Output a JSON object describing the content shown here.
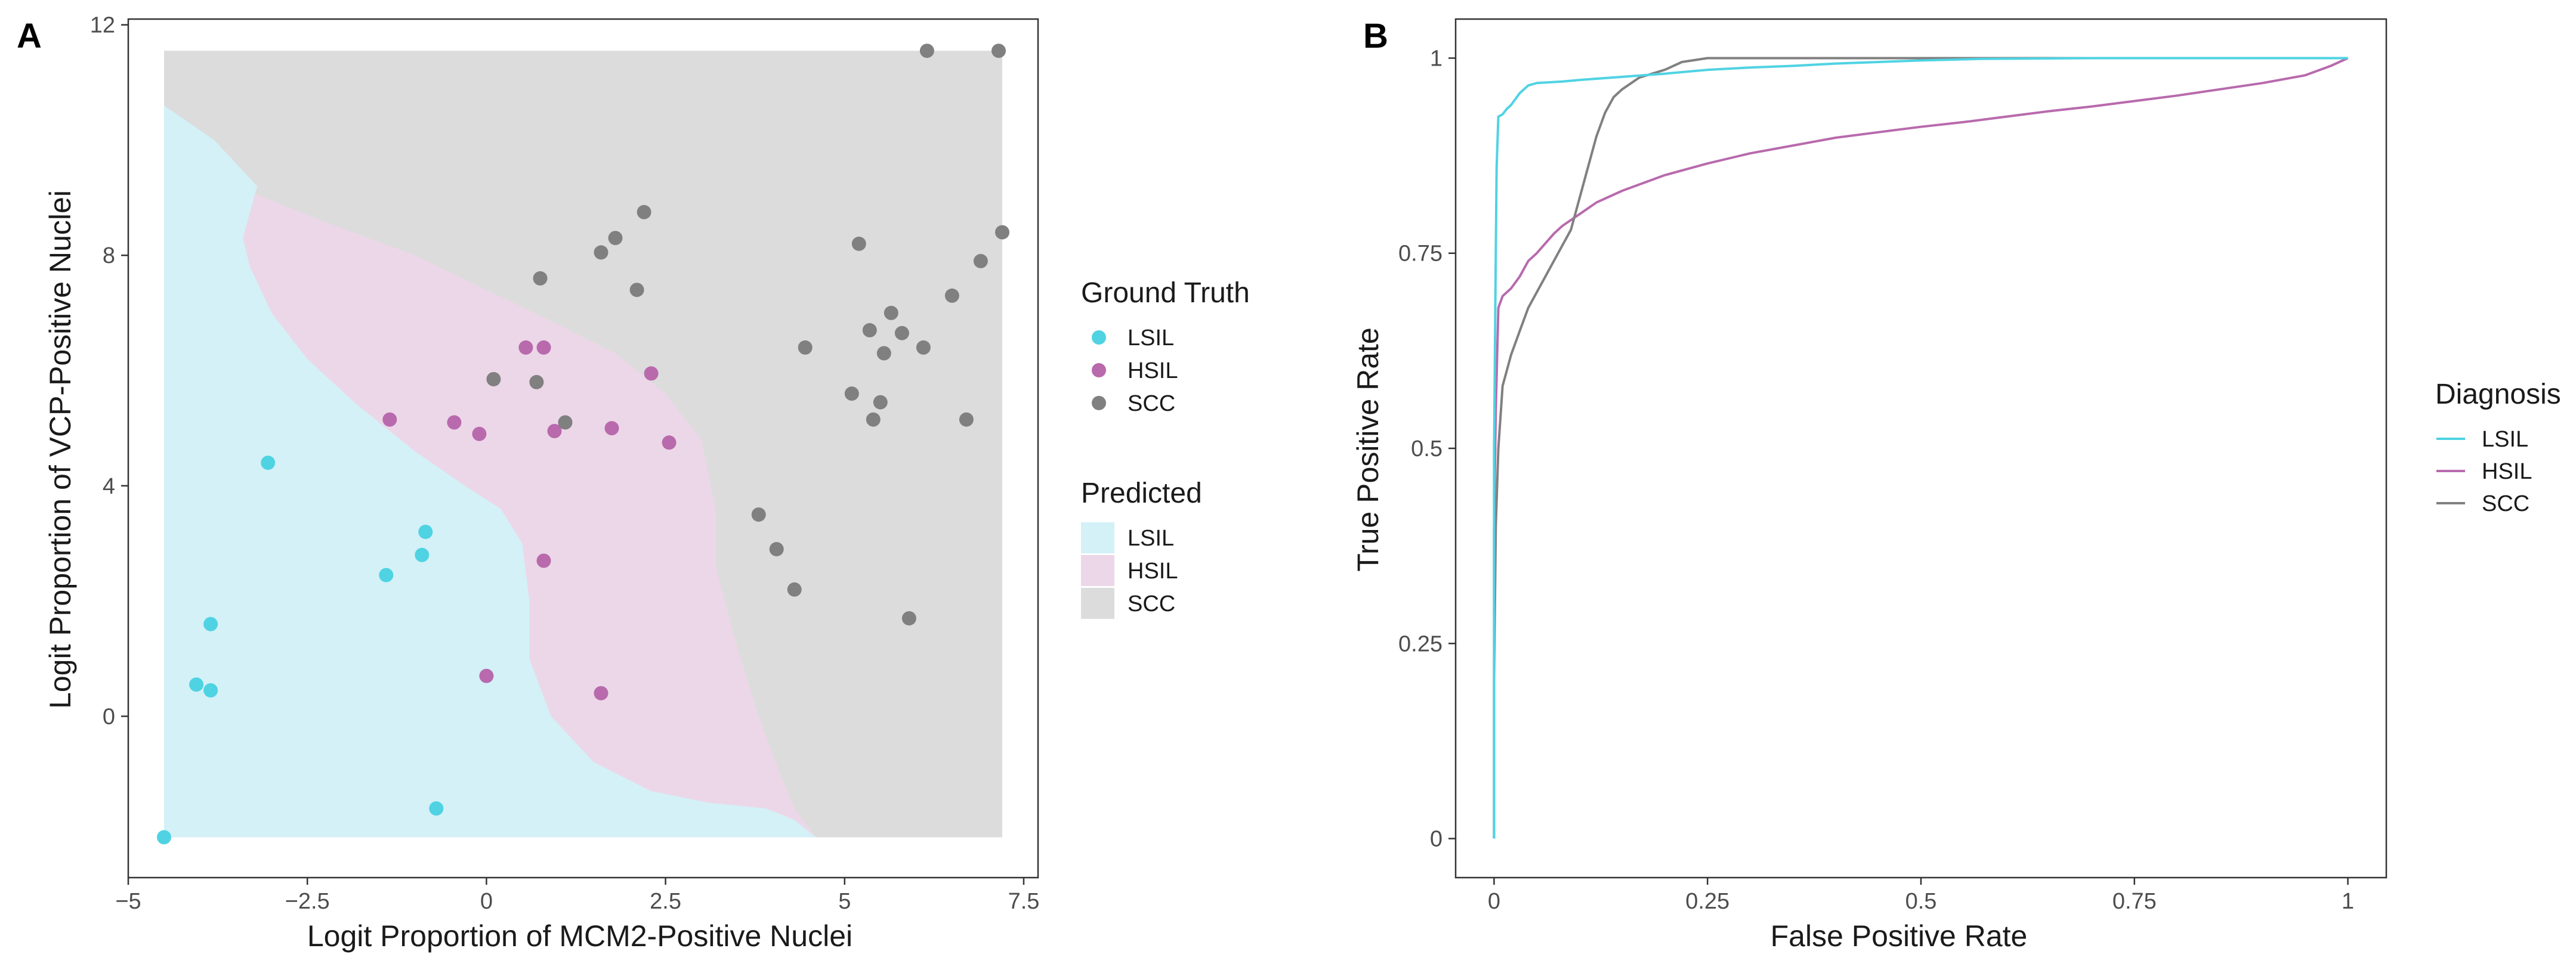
{
  "colors": {
    "LSIL": "#4fd3e3",
    "HSIL": "#b86aad",
    "SCC": "#808080",
    "LSIL_region": "#d3f1f7",
    "HSIL_region": "#ecd7e8",
    "SCC_region": "#dcdcdc"
  },
  "chart_data": [
    {
      "panel": "A",
      "type": "scatter",
      "xlabel": "Logit Proportion of MCM2-Positive Nuclei",
      "ylabel": "Logit Proportion of VCP-Positive Nuclei",
      "xlim": [
        -5,
        7.7
      ],
      "ylim": [
        -2.8,
        12.1
      ],
      "xticks": [
        -5,
        -2.5,
        0,
        2.5,
        5,
        7.5
      ],
      "xtick_labels": [
        "−5",
        "−2.5",
        "0",
        "2.5",
        "5",
        "7.5"
      ],
      "yticks": [
        0,
        4,
        8,
        12
      ],
      "ytick_labels": [
        "0",
        "4",
        "8",
        "12"
      ],
      "grid": false,
      "legends": [
        {
          "title": "Ground Truth",
          "kind": "point",
          "entries": [
            {
              "label": "LSIL",
              "color_key": "LSIL"
            },
            {
              "label": "HSIL",
              "color_key": "HSIL"
            },
            {
              "label": "SCC",
              "color_key": "SCC"
            }
          ]
        },
        {
          "title": "Predicted",
          "kind": "fill",
          "entries": [
            {
              "label": "LSIL",
              "color_key": "LSIL_region"
            },
            {
              "label": "HSIL",
              "color_key": "HSIL_region"
            },
            {
              "label": "SCC",
              "color_key": "SCC_region"
            }
          ]
        }
      ],
      "regions": {
        "bounds": {
          "x": [
            -4.5,
            7.2
          ],
          "y": [
            -2.1,
            11.55
          ]
        },
        "LSIL_boundary": [
          [
            -4.5,
            10.6
          ],
          [
            -3.8,
            10.0
          ],
          [
            -3.2,
            9.2
          ],
          [
            -3.4,
            8.3
          ],
          [
            -3.3,
            7.8
          ],
          [
            -3.0,
            7.0
          ],
          [
            -2.5,
            6.2
          ],
          [
            -1.8,
            5.4
          ],
          [
            -1.0,
            4.6
          ],
          [
            -0.3,
            4.0
          ],
          [
            0.2,
            3.6
          ],
          [
            0.5,
            3.0
          ],
          [
            0.6,
            2.0
          ],
          [
            0.6,
            1.0
          ],
          [
            0.9,
            0.0
          ],
          [
            1.5,
            -0.8
          ],
          [
            2.3,
            -1.3
          ],
          [
            3.1,
            -1.5
          ],
          [
            3.9,
            -1.6
          ],
          [
            4.3,
            -1.8
          ],
          [
            4.6,
            -2.1
          ]
        ],
        "SCC_boundary": [
          [
            -3.3,
            9.1
          ],
          [
            -2.3,
            8.6
          ],
          [
            -1.0,
            8.0
          ],
          [
            0.0,
            7.4
          ],
          [
            1.0,
            6.8
          ],
          [
            1.8,
            6.3
          ],
          [
            2.5,
            5.6
          ],
          [
            3.0,
            4.8
          ],
          [
            3.2,
            3.6
          ],
          [
            3.2,
            2.6
          ],
          [
            3.5,
            1.2
          ],
          [
            3.8,
            0.0
          ],
          [
            4.1,
            -1.0
          ],
          [
            4.3,
            -1.6
          ],
          [
            4.6,
            -2.1
          ]
        ]
      },
      "series": [
        {
          "name": "LSIL",
          "points": [
            [
              -3.05,
              4.4
            ],
            [
              -0.85,
              3.2
            ],
            [
              -1.4,
              2.45
            ],
            [
              -0.9,
              2.8
            ],
            [
              -3.85,
              1.6
            ],
            [
              -4.05,
              0.55
            ],
            [
              -3.85,
              0.45
            ],
            [
              -0.7,
              -1.6
            ],
            [
              -4.5,
              -2.1
            ]
          ]
        },
        {
          "name": "HSIL",
          "points": [
            [
              0.55,
              6.4
            ],
            [
              0.8,
              6.4
            ],
            [
              2.3,
              5.95
            ],
            [
              -1.35,
              5.15
            ],
            [
              -0.45,
              5.1
            ],
            [
              -0.1,
              4.9
            ],
            [
              0.95,
              4.95
            ],
            [
              1.75,
              5.0
            ],
            [
              2.55,
              4.75
            ],
            [
              0.8,
              2.7
            ],
            [
              0.0,
              0.7
            ],
            [
              1.6,
              0.4
            ]
          ]
        },
        {
          "name": "SCC",
          "points": [
            [
              6.15,
              11.55
            ],
            [
              7.15,
              11.55
            ],
            [
              2.2,
              8.75
            ],
            [
              1.8,
              8.3
            ],
            [
              1.6,
              8.05
            ],
            [
              5.2,
              8.2
            ],
            [
              0.75,
              7.6
            ],
            [
              2.1,
              7.4
            ],
            [
              7.2,
              8.4
            ],
            [
              6.9,
              7.9
            ],
            [
              6.5,
              7.3
            ],
            [
              5.65,
              7.0
            ],
            [
              5.35,
              6.7
            ],
            [
              5.8,
              6.65
            ],
            [
              4.45,
              6.4
            ],
            [
              5.55,
              6.3
            ],
            [
              6.1,
              6.4
            ],
            [
              0.1,
              5.85
            ],
            [
              0.7,
              5.8
            ],
            [
              5.1,
              5.6
            ],
            [
              5.5,
              5.45
            ],
            [
              1.1,
              5.1
            ],
            [
              5.4,
              5.15
            ],
            [
              6.7,
              5.15
            ],
            [
              3.8,
              3.5
            ],
            [
              4.05,
              2.9
            ],
            [
              4.3,
              2.2
            ],
            [
              5.9,
              1.7
            ]
          ]
        }
      ]
    },
    {
      "panel": "B",
      "type": "line",
      "xlabel": "False Positive Rate",
      "ylabel": "True Positive Rate",
      "xlim": [
        -0.045,
        1.045
      ],
      "ylim": [
        -0.05,
        1.05
      ],
      "xticks": [
        0,
        0.25,
        0.5,
        0.75,
        1
      ],
      "xtick_labels": [
        "0",
        "0.25",
        "0.5",
        "0.75",
        "1"
      ],
      "yticks": [
        0,
        0.25,
        0.5,
        0.75,
        1
      ],
      "ytick_labels": [
        "0",
        "0.25",
        "0.5",
        "0.75",
        "1"
      ],
      "grid": false,
      "legend": {
        "title": "Diagnosis",
        "entries": [
          {
            "label": "LSIL",
            "color_key": "LSIL"
          },
          {
            "label": "HSIL",
            "color_key": "HSIL"
          },
          {
            "label": "SCC",
            "color_key": "SCC"
          }
        ]
      },
      "series": [
        {
          "name": "LSIL",
          "x": [
            0,
            0,
            0.001,
            0.002,
            0.003,
            0.005,
            0.01,
            0.015,
            0.02,
            0.03,
            0.04,
            0.05,
            0.08,
            0.1,
            0.15,
            0.2,
            0.25,
            0.3,
            0.35,
            0.4,
            0.5,
            0.57,
            0.7,
            0.85,
            1.0
          ],
          "y": [
            0.0,
            0.5,
            0.62,
            0.75,
            0.86,
            0.925,
            0.928,
            0.935,
            0.94,
            0.955,
            0.965,
            0.968,
            0.97,
            0.972,
            0.976,
            0.98,
            0.985,
            0.988,
            0.99,
            0.993,
            0.997,
            0.999,
            1.0,
            1.0,
            1.0
          ]
        },
        {
          "name": "HSIL",
          "x": [
            0,
            0,
            0.002,
            0.005,
            0.01,
            0.02,
            0.03,
            0.04,
            0.05,
            0.07,
            0.08,
            0.1,
            0.12,
            0.15,
            0.2,
            0.25,
            0.3,
            0.35,
            0.4,
            0.45,
            0.5,
            0.55,
            0.6,
            0.65,
            0.7,
            0.75,
            0.8,
            0.85,
            0.9,
            0.95,
            0.98,
            1.0
          ],
          "y": [
            0.0,
            0.4,
            0.55,
            0.68,
            0.695,
            0.705,
            0.72,
            0.74,
            0.75,
            0.775,
            0.785,
            0.8,
            0.815,
            0.83,
            0.85,
            0.865,
            0.878,
            0.888,
            0.898,
            0.905,
            0.912,
            0.918,
            0.925,
            0.932,
            0.938,
            0.945,
            0.952,
            0.96,
            0.968,
            0.978,
            0.99,
            1.0
          ]
        },
        {
          "name": "SCC",
          "x": [
            0,
            0,
            0.002,
            0.005,
            0.01,
            0.015,
            0.02,
            0.03,
            0.04,
            0.05,
            0.06,
            0.07,
            0.08,
            0.09,
            0.1,
            0.11,
            0.12,
            0.13,
            0.14,
            0.15,
            0.17,
            0.2,
            0.22,
            0.25,
            0.3,
            0.5,
            0.75,
            1.0
          ],
          "y": [
            0.0,
            0.2,
            0.4,
            0.5,
            0.58,
            0.6,
            0.62,
            0.65,
            0.68,
            0.7,
            0.72,
            0.74,
            0.76,
            0.78,
            0.82,
            0.86,
            0.9,
            0.93,
            0.95,
            0.96,
            0.975,
            0.985,
            0.995,
            1.0,
            1.0,
            1.0,
            1.0,
            1.0
          ]
        }
      ]
    }
  ]
}
